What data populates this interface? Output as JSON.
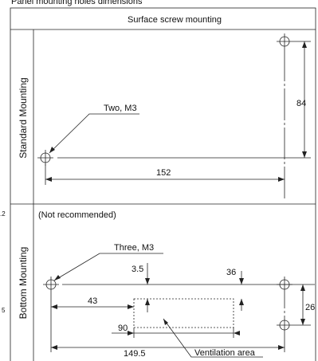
{
  "title": "Panel mounting holes dimensions",
  "header": "Surface screw mounting",
  "margin_fragments": [
    ".2",
    "5"
  ],
  "standard": {
    "row_label": "Standard Mounting",
    "leader": "Two, M3",
    "height": "84",
    "width": "152"
  },
  "bottom": {
    "note": "(Not recommended)",
    "row_label": "Bottom Mounting",
    "leader": "Three, M3",
    "dims": {
      "top_gap": "3.5",
      "right_gap": "36",
      "left_offset": "43",
      "spacing": "26",
      "vent_width": "90",
      "width": "149.5"
    },
    "vent_label": "Ventilation area"
  }
}
